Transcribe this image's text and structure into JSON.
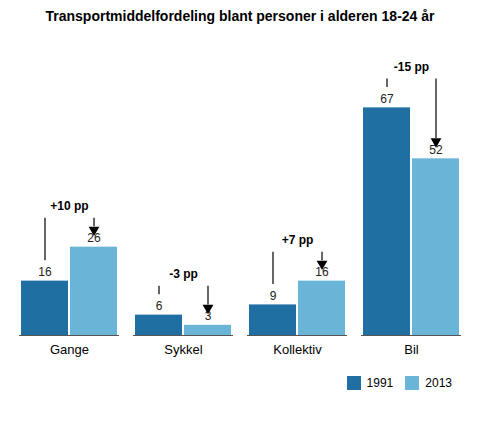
{
  "chart_data": {
    "type": "bar",
    "title": "Transportmiddelfordeling blant personer i alderen 18-24 år",
    "categories": [
      "Gange",
      "Sykkel",
      "Kollektiv",
      "Bil"
    ],
    "series": [
      {
        "name": "1991",
        "color": "#1f6fa3",
        "values": [
          16,
          6,
          9,
          67
        ]
      },
      {
        "name": "2013",
        "color": "#6ab4d8",
        "values": [
          26,
          3,
          16,
          52
        ]
      }
    ],
    "ylim": [
      0,
      78
    ],
    "tick_labels": "x",
    "data_labels": true,
    "legend": "lower right",
    "annotations": [
      {
        "text": "+10 pp",
        "category": "Gange"
      },
      {
        "text": "-3 pp",
        "category": "Sykkel"
      },
      {
        "text": "+7 pp",
        "category": "Kollektiv"
      },
      {
        "text": "-15 pp",
        "category": "Bil"
      }
    ]
  }
}
